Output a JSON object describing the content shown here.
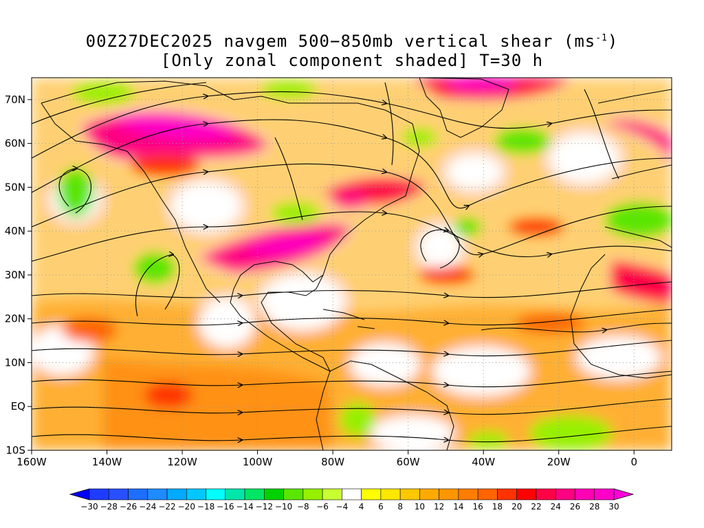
{
  "title": {
    "line1_prefix": "00Z27DEC2025 navgem 500−850mb vertical shear (ms",
    "line1_sup": "-1",
    "line1_suffix": ")",
    "line2": "[Only zonal component shaded] T=30 h"
  },
  "lat_labels": [
    "70N",
    "60N",
    "50N",
    "40N",
    "30N",
    "20N",
    "10N",
    "EQ",
    "10S"
  ],
  "lat_values": [
    70,
    60,
    50,
    40,
    30,
    20,
    10,
    0,
    -10
  ],
  "lon_labels": [
    "160W",
    "140W",
    "120W",
    "100W",
    "80W",
    "60W",
    "40W",
    "20W",
    "0"
  ],
  "lon_values": [
    -160,
    -140,
    -120,
    -100,
    -80,
    -60,
    -40,
    -20,
    0
  ],
  "map_extent": {
    "lon_min": -160,
    "lon_max": 10,
    "lat_min": -10,
    "lat_max": 75
  },
  "colorbar": {
    "labels": [
      "-30",
      "-28",
      "-26",
      "-24",
      "-22",
      "-20",
      "-18",
      "-16",
      "-14",
      "-12",
      "-10",
      "-8",
      "-6",
      "-4",
      "4",
      "6",
      "8",
      "10",
      "12",
      "14",
      "16",
      "18",
      "20",
      "22",
      "24",
      "26",
      "28",
      "30"
    ],
    "colors": [
      "#1e3cff",
      "#2850ff",
      "#1e6eff",
      "#1e8cff",
      "#00aaff",
      "#00c8ff",
      "#00ffff",
      "#00e6aa",
      "#00e664",
      "#00d200",
      "#5ae600",
      "#96f000",
      "#c8ff32",
      "#ffffff",
      "#ffff00",
      "#ffe600",
      "#ffc800",
      "#ffaa00",
      "#ff9600",
      "#ff7d00",
      "#ff6400",
      "#ff3200",
      "#ff0000",
      "#ff0046",
      "#ff0082",
      "#ff00b4",
      "#ff00c8"
    ],
    "under_color": "#0000ff",
    "over_color": "#ff00dc"
  },
  "colors": {
    "missing_background": "#ffffff",
    "coast": "#000000",
    "streamline": "#000000"
  },
  "features": [
    "shear-shading",
    "streamlines",
    "coastlines",
    "lat-lon-grid"
  ]
}
